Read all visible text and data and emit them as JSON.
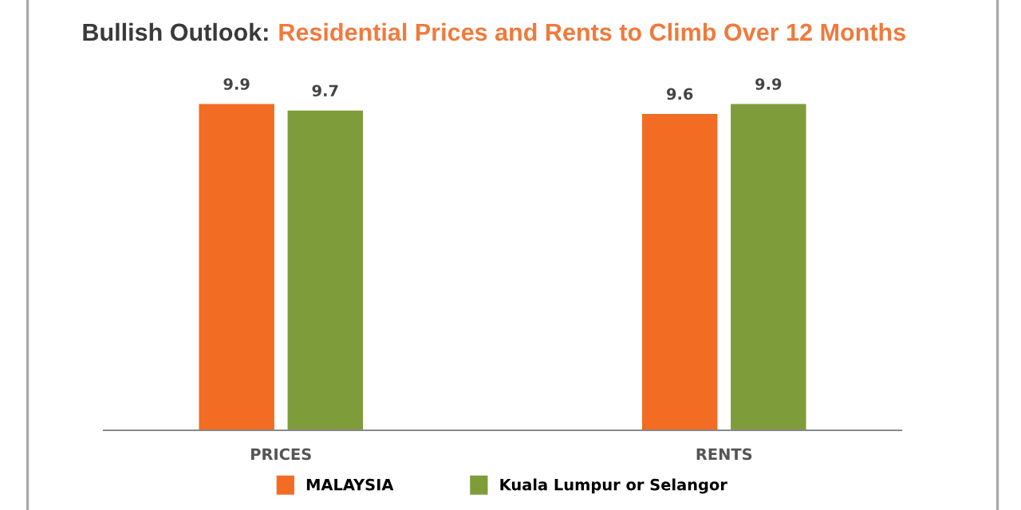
{
  "chart_data": {
    "type": "bar",
    "title": "Bullish Outlook:",
    "subtitle": "Residential Prices and Rents to Climb Over 12 Months",
    "categories": [
      "PRICES",
      "RENTS"
    ],
    "series": [
      {
        "name": "MALAYSIA",
        "color": "#f26c23",
        "values": [
          9.9,
          9.6
        ]
      },
      {
        "name": "Kuala Lumpur or Selangor",
        "color": "#7f9c3a",
        "values": [
          9.7,
          9.9
        ]
      }
    ],
    "data_labels": true,
    "legend": "bottom",
    "grid": false
  }
}
